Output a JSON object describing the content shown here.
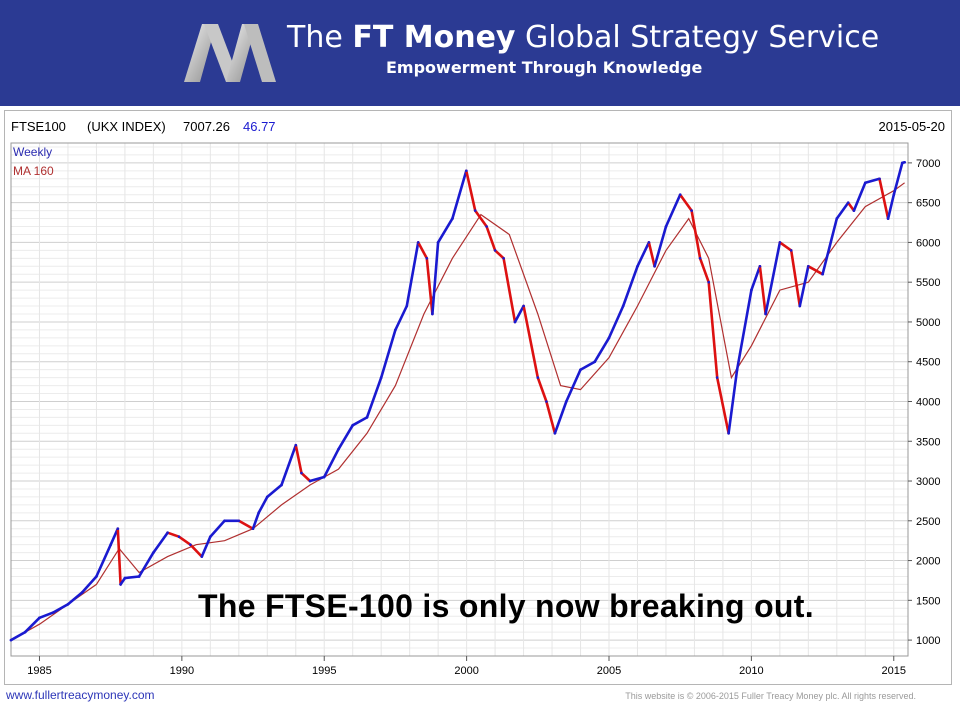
{
  "banner": {
    "title_prefix": "The ",
    "title_bold": "FT Money",
    "title_suffix": " Global Strategy Service",
    "tagline": "Empowerment Through Knowledge",
    "logo_icon": "m-logo-icon",
    "background_color": "#2b3a93"
  },
  "chart_header": {
    "symbol": "FTSE100",
    "index_name": "(UKX INDEX)",
    "last_value": "7007.26",
    "change": "46.77",
    "date": "2015-05-20",
    "legend_weekly": "Weekly",
    "legend_ma": "MA 160"
  },
  "headline": "The FTSE-100 is only now breaking out.",
  "footer": {
    "url": "www.fullertreacymoney.com",
    "copyright": "This website is © 2006-2015 Fuller Treacy Money plc. All rights reserved."
  },
  "chart_data": {
    "type": "line",
    "title": "FTSE100 (UKX INDEX) 7007.26 46.77",
    "xlabel": "",
    "ylabel": "",
    "xlim": [
      1984.0,
      2015.5
    ],
    "ylim": [
      800,
      7250
    ],
    "x_ticks": [
      1985,
      1990,
      1995,
      2000,
      2005,
      2010,
      2015
    ],
    "y_ticks": [
      1000,
      1500,
      2000,
      2500,
      3000,
      3500,
      4000,
      4500,
      5000,
      5500,
      6000,
      6500,
      7000
    ],
    "grid": true,
    "legend_position": "top-left",
    "colors": {
      "price_up": "#1a1ad0",
      "price_down": "#dd1111",
      "ma": "#b03030",
      "grid": "#dcdcdc"
    },
    "series": [
      {
        "name": "Weekly",
        "x": [
          1984.0,
          1984.5,
          1985.0,
          1985.5,
          1986.0,
          1986.5,
          1987.0,
          1987.5,
          1987.75,
          1987.85,
          1988.0,
          1988.5,
          1989.0,
          1989.5,
          1989.9,
          1990.3,
          1990.7,
          1991.0,
          1991.5,
          1992.0,
          1992.5,
          1992.7,
          1993.0,
          1993.5,
          1994.0,
          1994.2,
          1994.5,
          1995.0,
          1995.5,
          1996.0,
          1996.5,
          1997.0,
          1997.5,
          1997.9,
          1998.3,
          1998.6,
          1998.8,
          1999.0,
          1999.5,
          1999.99,
          2000.3,
          2000.7,
          2001.0,
          2001.3,
          2001.7,
          2002.0,
          2002.5,
          2002.8,
          2003.1,
          2003.5,
          2004.0,
          2004.5,
          2005.0,
          2005.5,
          2006.0,
          2006.4,
          2006.6,
          2007.0,
          2007.5,
          2007.9,
          2008.2,
          2008.5,
          2008.8,
          2009.2,
          2009.5,
          2010.0,
          2010.3,
          2010.5,
          2011.0,
          2011.4,
          2011.7,
          2012.0,
          2012.5,
          2013.0,
          2013.4,
          2013.6,
          2014.0,
          2014.5,
          2014.8,
          2015.0,
          2015.3,
          2015.38
        ],
        "values": [
          1000,
          1100,
          1280,
          1350,
          1450,
          1600,
          1800,
          2200,
          2400,
          1700,
          1780,
          1800,
          2100,
          2350,
          2300,
          2200,
          2050,
          2300,
          2500,
          2500,
          2400,
          2600,
          2800,
          2950,
          3450,
          3100,
          3000,
          3050,
          3400,
          3700,
          3800,
          4300,
          4900,
          5200,
          6000,
          5800,
          5100,
          6000,
          6300,
          6900,
          6400,
          6200,
          5900,
          5800,
          5000,
          5200,
          4300,
          4000,
          3600,
          4000,
          4400,
          4500,
          4800,
          5200,
          5700,
          6000,
          5700,
          6200,
          6600,
          6400,
          5800,
          5500,
          4300,
          3600,
          4400,
          5400,
          5700,
          5100,
          6000,
          5900,
          5200,
          5700,
          5600,
          6300,
          6500,
          6400,
          6750,
          6800,
          6300,
          6600,
          7000,
          7007.26
        ]
      },
      {
        "name": "MA 160",
        "x": [
          1984.0,
          1985.0,
          1986.0,
          1987.0,
          1987.8,
          1988.5,
          1989.5,
          1990.5,
          1991.5,
          1992.5,
          1993.5,
          1994.5,
          1995.5,
          1996.5,
          1997.5,
          1998.5,
          1999.5,
          2000.5,
          2001.5,
          2002.5,
          2003.3,
          2004.0,
          2005.0,
          2006.0,
          2007.0,
          2007.8,
          2008.5,
          2009.3,
          2010.0,
          2011.0,
          2012.0,
          2013.0,
          2014.0,
          2015.0,
          2015.38
        ],
        "values": [
          1000,
          1200,
          1450,
          1700,
          2150,
          1850,
          2050,
          2200,
          2250,
          2400,
          2700,
          2950,
          3150,
          3600,
          4200,
          5100,
          5800,
          6350,
          6100,
          5100,
          4200,
          4150,
          4550,
          5200,
          5900,
          6300,
          5800,
          4300,
          4700,
          5400,
          5500,
          6000,
          6450,
          6650,
          6750
        ]
      }
    ]
  }
}
